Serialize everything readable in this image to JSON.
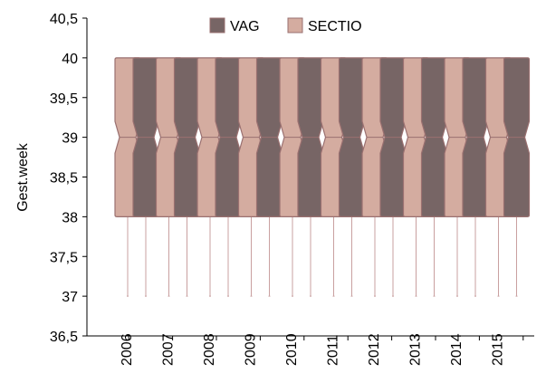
{
  "chart_data": {
    "type": "boxplot",
    "title": "",
    "xlabel": "",
    "ylabel": "Gest.week",
    "ylim": [
      36.5,
      40.5
    ],
    "yticks": [
      "36,5",
      "37",
      "37,5",
      "38",
      "38,5",
      "39",
      "39,5",
      "40",
      "40,5"
    ],
    "ytick_values": [
      36.5,
      37,
      37.5,
      38,
      38.5,
      39,
      39.5,
      40,
      40.5
    ],
    "categories": [
      "2006",
      "2007",
      "2008",
      "2009",
      "2010",
      "2011",
      "2012",
      "2013",
      "2014",
      "2015"
    ],
    "legend": {
      "placement": "top-center"
    },
    "grid": false,
    "notched": true,
    "series": [
      {
        "name": "SECTIO",
        "color": "#d4aca0",
        "boxes": [
          {
            "min": 37,
            "q1": 38,
            "median": 39,
            "q3": 40,
            "max": 40
          },
          {
            "min": 37,
            "q1": 38,
            "median": 39,
            "q3": 40,
            "max": 40
          },
          {
            "min": 37,
            "q1": 38,
            "median": 39,
            "q3": 40,
            "max": 40
          },
          {
            "min": 37,
            "q1": 38,
            "median": 39,
            "q3": 40,
            "max": 40
          },
          {
            "min": 37,
            "q1": 38,
            "median": 39,
            "q3": 40,
            "max": 40
          },
          {
            "min": 37,
            "q1": 38,
            "median": 39,
            "q3": 40,
            "max": 40
          },
          {
            "min": 37,
            "q1": 38,
            "median": 39,
            "q3": 40,
            "max": 40
          },
          {
            "min": 37,
            "q1": 38,
            "median": 39,
            "q3": 40,
            "max": 40
          },
          {
            "min": 37,
            "q1": 38,
            "median": 39,
            "q3": 40,
            "max": 40
          },
          {
            "min": 37,
            "q1": 38,
            "median": 39,
            "q3": 40,
            "max": 40
          }
        ]
      },
      {
        "name": "VAG",
        "color": "#776565",
        "boxes": [
          {
            "min": 37,
            "q1": 38,
            "median": 39,
            "q3": 40,
            "max": 40
          },
          {
            "min": 37,
            "q1": 38,
            "median": 39,
            "q3": 40,
            "max": 40
          },
          {
            "min": 37,
            "q1": 38,
            "median": 39,
            "q3": 40,
            "max": 40
          },
          {
            "min": 37,
            "q1": 38,
            "median": 39,
            "q3": 40,
            "max": 40
          },
          {
            "min": 37,
            "q1": 38,
            "median": 39,
            "q3": 40,
            "max": 40
          },
          {
            "min": 37,
            "q1": 38,
            "median": 39,
            "q3": 40,
            "max": 40
          },
          {
            "min": 37,
            "q1": 38,
            "median": 39,
            "q3": 40,
            "max": 40
          },
          {
            "min": 37,
            "q1": 38,
            "median": 39,
            "q3": 40,
            "max": 40
          },
          {
            "min": 37,
            "q1": 38,
            "median": 39,
            "q3": 40,
            "max": 40
          },
          {
            "min": 37,
            "q1": 38,
            "median": 39,
            "q3": 40,
            "max": 40
          }
        ]
      }
    ],
    "colors": {
      "outline": "#9a7070",
      "whisker": "#c9a0a0",
      "axis": "#000000"
    }
  }
}
